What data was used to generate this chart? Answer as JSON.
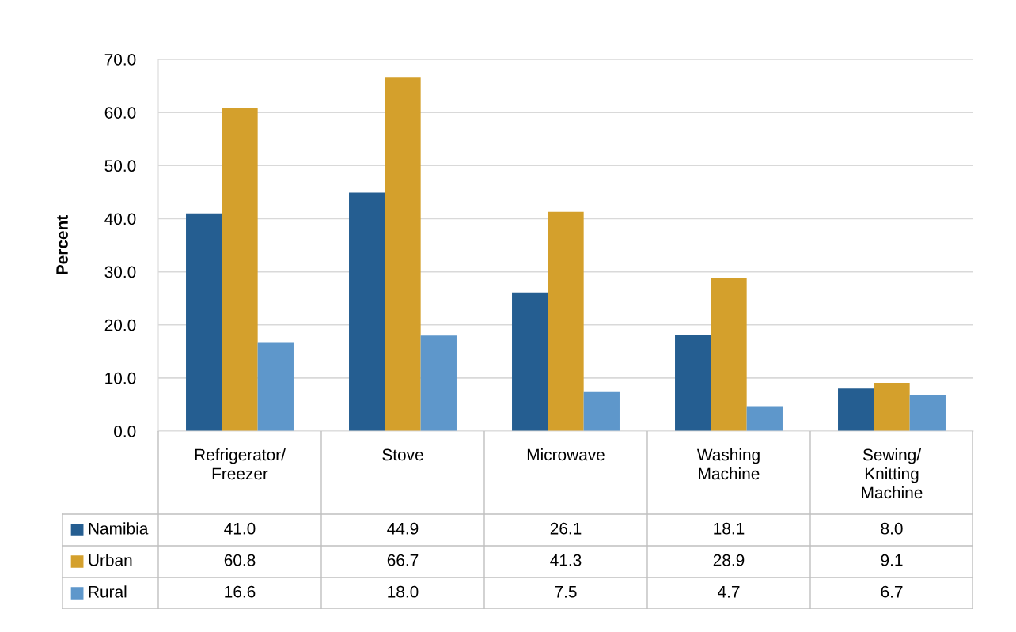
{
  "chart_data": {
    "type": "bar",
    "ylabel": "Percent",
    "categories": [
      "Refrigerator/ Freezer",
      "Stove",
      "Microwave",
      "Washing Machine",
      "Sewing/ Knitting Machine"
    ],
    "series": [
      {
        "name": "Namibia",
        "color": "#255e91",
        "values": [
          41.0,
          44.9,
          26.1,
          18.1,
          8.0
        ],
        "value_labels": [
          "41.0",
          "44.9",
          "26.1",
          "18.1",
          "8.0"
        ]
      },
      {
        "name": "Urban",
        "color": "#d4a02c",
        "values": [
          60.8,
          66.7,
          41.3,
          28.9,
          9.1
        ],
        "value_labels": [
          "60.8",
          "66.7",
          "41.3",
          "28.9",
          "9.1"
        ]
      },
      {
        "name": "Rural",
        "color": "#5e97cb",
        "values": [
          16.6,
          18.0,
          7.5,
          4.7,
          6.7
        ],
        "value_labels": [
          "16.6",
          "18.0",
          "7.5",
          "4.7",
          "6.7"
        ]
      }
    ],
    "ylim": [
      0,
      70
    ],
    "yticks": [
      {
        "value": 0,
        "label": "0.0"
      },
      {
        "value": 10,
        "label": "10.0"
      },
      {
        "value": 20,
        "label": "20.0"
      },
      {
        "value": 30,
        "label": "30.0"
      },
      {
        "value": 40,
        "label": "40.0"
      },
      {
        "value": 50,
        "label": "50.0"
      },
      {
        "value": 60,
        "label": "60.0"
      },
      {
        "value": 70,
        "label": "70.0"
      }
    ],
    "grid": "y",
    "legend": "bottom"
  }
}
